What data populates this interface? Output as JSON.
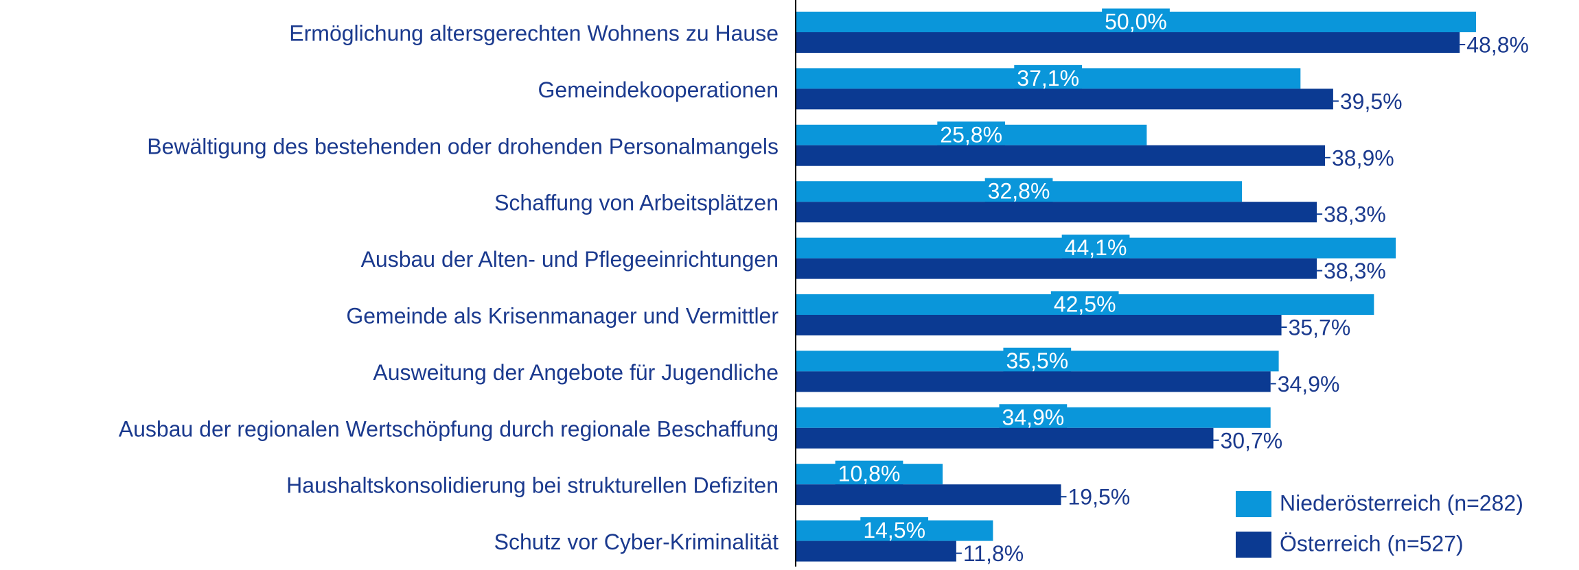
{
  "chart_data": {
    "type": "bar",
    "orientation": "horizontal",
    "categories": [
      "Ermöglichung altersgerechten Wohnens zu Hause",
      "Gemeindekooperationen",
      "Bewältigung des bestehenden oder drohenden Personalmangels",
      "Schaffung von Arbeitsplätzen",
      "Ausbau der Alten- und Pflegeeinrichtungen",
      "Gemeinde als Krisenmanager und Vermittler",
      "Ausweitung der Angebote für Jugendliche",
      "Ausbau der regionalen Wertschöpfung durch regionale Beschaffung",
      "Haushaltskonsolidierung bei strukturellen Defiziten",
      "Schutz vor Cyber-Kriminalität"
    ],
    "series": [
      {
        "name": "Niederösterreich (n=282)",
        "color": "#0a96da",
        "values": [
          50.0,
          37.1,
          25.8,
          32.8,
          44.1,
          42.5,
          35.5,
          34.9,
          10.8,
          14.5
        ],
        "value_labels": [
          "50,0%",
          "37,1%",
          "25,8%",
          "32,8%",
          "44,1%",
          "42,5%",
          "35,5%",
          "34,9%",
          "10,8%",
          "14,5%"
        ]
      },
      {
        "name": "Österreich (n=527)",
        "color": "#0b3a92",
        "values": [
          48.8,
          39.5,
          38.9,
          38.3,
          38.3,
          35.7,
          34.9,
          30.7,
          19.5,
          11.8
        ],
        "value_labels": [
          "48,8%",
          "39,5%",
          "38,9%",
          "38,3%",
          "38,3%",
          "35,7%",
          "34,9%",
          "30,7%",
          "19,5%",
          "11,8%"
        ]
      }
    ],
    "xlim": [
      0,
      50
    ],
    "legend": "bottom right"
  }
}
